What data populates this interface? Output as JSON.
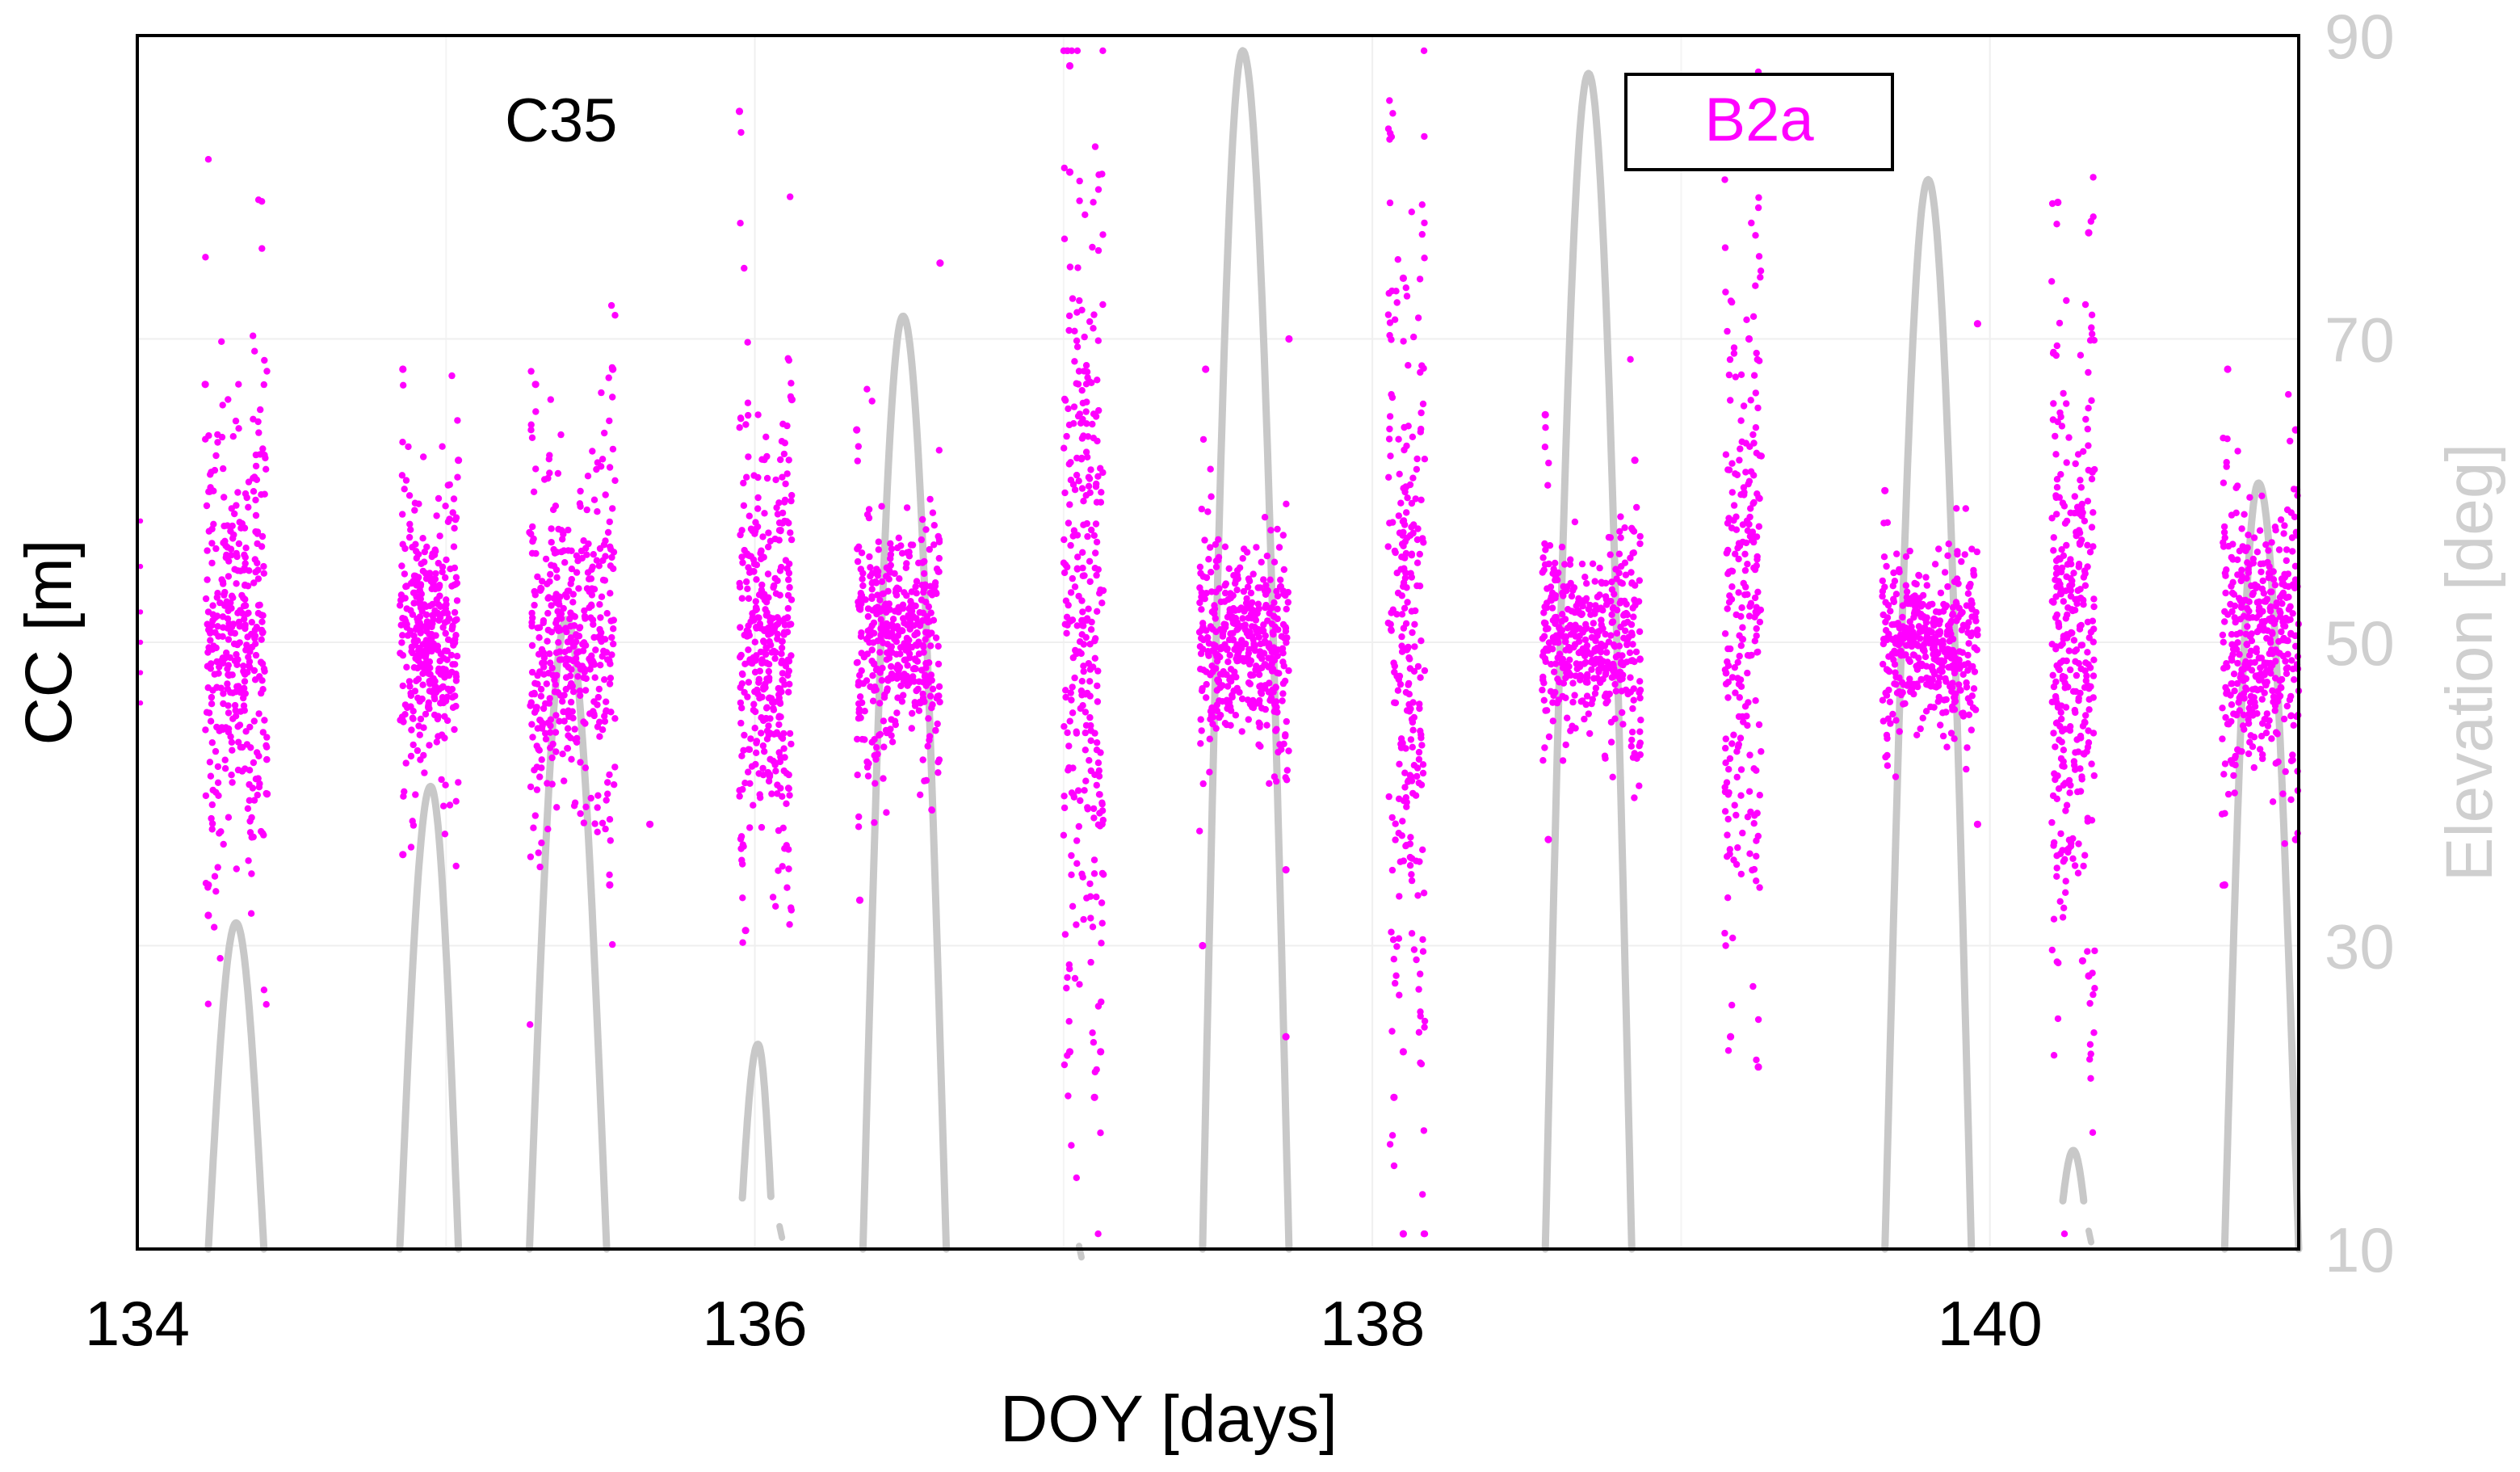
{
  "chart_data": {
    "type": "scatter",
    "title": "",
    "annotation": "C35",
    "legend": {
      "label": "B2a",
      "color": "#ff00ff",
      "placement": "top-right"
    },
    "xlabel": "DOY [days]",
    "ylabel_left": "CC [m]",
    "ylabel_right": "Elevation [deg]",
    "xlim": [
      134,
      141
    ],
    "x_ticks": [
      134,
      136,
      138,
      140
    ],
    "x_tick_labels": [
      "134",
      "136",
      "138",
      "140"
    ],
    "y2lim": [
      10,
      90
    ],
    "y2_ticks": [
      10,
      30,
      50,
      70,
      90
    ],
    "y2_tick_labels": [
      "10",
      "30",
      "50",
      "70",
      "90"
    ],
    "grid": true,
    "colors": {
      "cc_points": "#ff00ff",
      "elevation": "#c8c8c8",
      "axis_label_right": "#cfcfcf"
    },
    "series": [
      {
        "name": "B2a CC",
        "axis": "left",
        "note": "CC plotted on a normalized scale (same span as the elevation axis, centre 50)",
        "clusters": [
          {
            "x_start": 134.22,
            "x_end": 134.42,
            "center": 50,
            "core_spread": 6,
            "density": 380,
            "outliers": [
              [
                134.23,
                32
              ],
              [
                134.23,
                34
              ],
              [
                134.42,
                40
              ],
              [
                134.22,
                67
              ]
            ]
          },
          {
            "x_start": 134.85,
            "x_end": 135.04,
            "center": 50,
            "core_spread": 3.5,
            "density": 360,
            "outliers": [
              [
                134.86,
                68
              ],
              [
                134.86,
                36
              ],
              [
                135.04,
                62
              ]
            ]
          },
          {
            "x_start": 135.27,
            "x_end": 135.55,
            "center": 50,
            "core_spread": 4.5,
            "density": 420,
            "outliers": [
              [
                135.29,
                67
              ],
              [
                135.54,
                68
              ],
              [
                135.53,
                34
              ],
              [
                135.66,
                38
              ]
            ]
          },
          {
            "x_start": 135.95,
            "x_end": 136.12,
            "center": 50,
            "core_spread": 5.5,
            "density": 380,
            "outliers": [
              [
                135.95,
                85
              ],
              [
                135.97,
                31
              ],
              [
                136.12,
                66
              ]
            ]
          },
          {
            "x_start": 136.33,
            "x_end": 136.6,
            "center": 50,
            "core_spread": 3,
            "density": 420,
            "outliers": [
              [
                136.34,
                33
              ],
              [
                136.6,
                75
              ],
              [
                136.33,
                64
              ]
            ]
          },
          {
            "x_start": 137.0,
            "x_end": 137.13,
            "center": 52,
            "core_spread": 11,
            "density": 300,
            "outliers": [
              [
                137.02,
                88
              ],
              [
                137.02,
                81
              ],
              [
                137.1,
                20
              ],
              [
                137.02,
                23
              ],
              [
                137.12,
                23
              ]
            ]
          },
          {
            "x_start": 137.44,
            "x_end": 137.73,
            "center": 50,
            "core_spread": 2.5,
            "density": 420,
            "outliers": [
              [
                137.46,
                68
              ],
              [
                137.73,
                70
              ],
              [
                137.45,
                30
              ],
              [
                137.72,
                35
              ],
              [
                137.72,
                24
              ]
            ]
          },
          {
            "x_start": 138.05,
            "x_end": 138.17,
            "center": 50,
            "core_spread": 9,
            "density": 260,
            "outliers": [
              [
                138.1,
                74
              ],
              [
                138.07,
                20
              ],
              [
                138.1,
                11
              ],
              [
                138.1,
                23
              ]
            ]
          },
          {
            "x_start": 138.55,
            "x_end": 138.87,
            "center": 50,
            "core_spread": 2.5,
            "density": 440,
            "outliers": [
              [
                138.56,
                65
              ],
              [
                138.85,
                62
              ],
              [
                138.57,
                37
              ]
            ]
          },
          {
            "x_start": 139.14,
            "x_end": 139.26,
            "center": 52,
            "core_spread": 8,
            "density": 240,
            "outliers": [
              [
                139.22,
                70
              ],
              [
                139.16,
                24
              ],
              [
                139.25,
                22
              ]
            ]
          },
          {
            "x_start": 139.65,
            "x_end": 139.96,
            "center": 50,
            "core_spread": 2.2,
            "density": 420,
            "outliers": [
              [
                139.66,
                60
              ],
              [
                139.96,
                71
              ],
              [
                139.96,
                38
              ]
            ]
          },
          {
            "x_start": 140.2,
            "x_end": 140.34,
            "center": 50,
            "core_spread": 7,
            "density": 340,
            "outliers": [
              [
                140.22,
                79
              ],
              [
                140.32,
                77
              ],
              [
                140.3,
                29
              ],
              [
                140.32,
                28
              ]
            ]
          },
          {
            "x_start": 140.75,
            "x_end": 141.0,
            "center": 50,
            "core_spread": 3.5,
            "density": 420,
            "outliers": [
              [
                140.77,
                68
              ],
              [
                140.76,
                34
              ],
              [
                140.99,
                64
              ],
              [
                140.99,
                37
              ]
            ]
          }
        ]
      },
      {
        "name": "Elevation",
        "axis": "right",
        "passes": [
          {
            "x_start": 134.23,
            "x_end": 134.41,
            "x_peak": 134.32,
            "peak": 31.5,
            "visible_above": 10
          },
          {
            "x_start": 134.85,
            "x_end": 135.04,
            "x_peak": 134.95,
            "peak": 40.5,
            "visible_above": 10
          },
          {
            "x_start": 135.27,
            "x_end": 135.52,
            "x_peak": 135.39,
            "peak": 51.5,
            "visible_above": 10
          },
          {
            "x_start": 135.95,
            "x_end": 136.06,
            "x_peak": 136.01,
            "peak": 23.5,
            "visible_above": 13
          },
          {
            "x_start": 136.35,
            "x_end": 136.62,
            "x_peak": 136.48,
            "peak": 71.5,
            "visible_above": 10
          },
          {
            "x_start": 137.45,
            "x_end": 137.73,
            "x_peak": 137.58,
            "peak": 89.0,
            "visible_above": 10
          },
          {
            "x_start": 138.56,
            "x_end": 138.84,
            "x_peak": 138.7,
            "peak": 87.5,
            "visible_above": 10
          },
          {
            "x_start": 139.66,
            "x_end": 139.94,
            "x_peak": 139.8,
            "peak": 80.5,
            "visible_above": 10
          },
          {
            "x_start": 140.22,
            "x_end": 140.32,
            "x_peak": 140.27,
            "peak": 16.5,
            "visible_above": 13
          },
          {
            "x_start": 140.76,
            "x_end": 141.0,
            "x_peak": 140.87,
            "peak": 60.5,
            "visible_above": 10
          }
        ],
        "fragments": [
          [
            136.08,
            11.5
          ],
          [
            140.32,
            11.2
          ],
          [
            137.05,
            10.2
          ]
        ]
      }
    ]
  }
}
